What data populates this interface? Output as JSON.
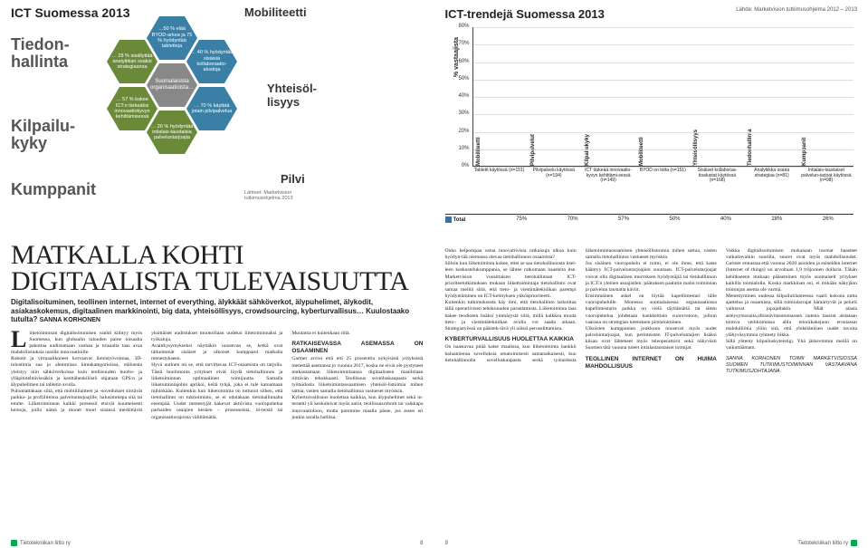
{
  "left": {
    "top_title": "ICT Suomessa 2013",
    "side_labels": {
      "tiedonhallinta": "Tiedon-\nhallinta",
      "kilpailukyky": "Kilpailu-\nkyky",
      "kumppanit": "Kumppanit"
    },
    "col_labels": {
      "mobiliteetti": "Mobiliteetti",
      "yhteisollisyys": "Yhteisöl-\nlisyys",
      "pilvi": "Pilvi"
    },
    "center": "Suomalaisista organisaatioista…",
    "hex": {
      "h1": "…50 % elää BYOD-arkea ja 75 % hyödyntää tabletteja",
      "h2": "… 28 % sisällyttää analytiikan osaksi strategiaansa",
      "h3": "… 40 % hyödyntää sisäisiä kollaboraatio-alustoja",
      "h4": "… 57 % kokee ICT:n tärkeäksi innovaatiokyvyn kehittämisessä",
      "h5": "… 26 % hyödyntää intialais-taustaisia palveluntarjoajia",
      "h6": "… 70 % käyttää jotain pilvipalvelua"
    },
    "source": "Lähteet: Marketvision tutkimusohjelma 2013"
  },
  "chart": {
    "title": "ICT-trendejä Suomessa 2013",
    "source": "Lähde: Marketvision tutkimusohjelma 2012 – 2013",
    "ylabel": "% vastaajista",
    "ylim": [
      0,
      80
    ],
    "ytick_step": 10,
    "categories_top": [
      "Mobiliteetti",
      "Pilvipalvelut",
      "Kilpailukyky",
      "Mobiliteetti",
      "Yhteisöllisyys",
      "Tiedonhallinta",
      "Kumppanit"
    ],
    "categories_bottom": [
      "Tabletit käytössä (n=151)",
      "Pilvipalvelu käytössä (n=194)",
      "ICT tärkeää innovaatio-kyvyn kehittämi-sessä (n=149)",
      "BYOD on totta (n=151)",
      "Sisäiset kollaboraa-tioalustat käytössä (n=168)",
      "Analytiikka osana strategiaa (n=81)",
      "Intialais-taustaiset palvelun-tarjoat käytössä (n=98)"
    ],
    "series_label": "Total",
    "values": [
      75,
      70,
      57,
      50,
      40,
      28,
      26
    ],
    "bar_color": "#3a6fa8",
    "grid_color": "#dddddd",
    "axis_color": "#444444",
    "background": "#ffffff"
  },
  "article": {
    "headline1": "MATKALLA KOHTI",
    "headline2": "DIGITAALISTA TULEVAISUUTTA",
    "lede": "Digitalisoituminen, teollinen internet, internet of everything, älykkäät sähköverkot, älypuhelimet, älykodit, asiakaskokemus, digitaalinen markkinointi, big data, yhteisöllisyys, crowdsourcing, kyberturvallisus… Kuulostaako tutulta?",
    "byline": "SANNA KORHONEN",
    "p1": "iiketoiminnan digitalisoitumisen vauhti kiihtyy myös Suomessa, kun globaalin talouden paine toisaalta pakottaa uudistamaan vanhaa ja toisaalta taas avaa mahdollisuuksia uusille innovaatioille.",
    "p2": "Robotit ja virtuaalikoneet korvaavat ihmistyövoimaa, 3D-tulostimia saa jo alemmissa hintakategorioissa, etäluenta yleistyy niin sähköverkoissa kuin teollisuuden huolto- ja ylläpitotehtävissäkin ja kenttähenkilöstö ohjataan GPS:n ja älypuhelimen tai tabletin avulla.",
    "p3": "Puhumattakaan siitä, että mobiililaitteet ja -sovellukset siirtävät paikka- ja profiiliteitoa palveluntarjoajille, halusimmepa sitä tai emme. Liiketoiminnan kaikki prosessit etsivät kuumeisesti keinoja, joilla nämä ja monet muut sinänsä merkittävät yksittäiset uudistukset muotoillaan uudeksi liitetoiminnaksi ja työkaluja.",
    "p4": "Avainkysymykseksi näyttäkin nousevan se, ketkä ovat tärkeimmät sisäiset ja ulkoiset kumppanit matkalla menestykseen.",
    "p5": "Hyvä uutinen on se, että tarvittavaa ICT-osaamista on tarjolla. Tästä huolimonta yritykset eivät löydä tietohallinnon ja liiketoiminnan optimaalinen toimijuutta. Samalla liiketoimintajohto aprikoi, keitä tyhjä, joka ei tule katoamaan mihinkään. Kuitenkin kun liiketoiminta on tottunut siihen, että tietohallinto on tukitoiminto, se ei odotakaan tietohallinnalta enempää. Uudet menestyjät hakevat aktiivista vuoropuhelua parhaiden osaajien kesken – prosesseista, tii-teistä tai organisaatiorajoista välittämättä.",
    "p6": "Muutama ei kuitenkaan riitä.",
    "h_ratk": "RATKAISEVASSA ASEMASSA ON OSAAMINEN",
    "p7": "Gartner arvioi että etti 25 prosenttia nykyisistä yrityksistä menettää asemansa jo vuonna 2017, koska ne eivät ole pystyneet mukautamaan liiketoimintaansa digitaaliseen maailmaan riittävän tehokkaasti. Teollisuus sovelluskaupasta serkä työtaidosta liiketoimintaosaamisen yhteisöl-listoimia mihen sattua, vasten samalla tietohallintoa vastueset myöskin.",
    "p8": "Kyberturvallisuus huolettaa kaikkia, kun älypuhelimet sekä in-ternetti yli keskuleivat myös autot, teollisuusrobotit tai vaikkapa innovaatioloon, mutta puremme maalla pässe, jos assen eri joukin saralla hallitsa.",
    "p_r1": "Onko helpompaa ostaa innovatiivisia ratkaisuja ulkoa kuin hyödyn-tää olemassa olevaa tietohallinnon osaamista?",
    "p_r2": "Silloin kun liiketoiminta kokee, ettei se saa tietohallinnosta itsel-leen keskustelukumppania, se lähtee ratkomaan haasteita itse. Marketvision vuosittaisen tietohallinnan ICT-prioriteetutkimuksen mukaan liikettoimintaja tietohallinto ovat samaa meiltä siitä, että tieto- ja viestintätekniikan parempi hyödyntäminen on ICT-kehityksen ykkösprioriteetti.",
    "p_r3": "Kuitenkin tutkimuksesta käy ilmi, että tietohallinto tarkoittaa tällä operatiivisen tehokuuuden parantamista. Liiketoiminta taas hakee teodiseen lisäksi ymmärystä siitä, millä kaikkea muuta tieto- ja viestintätekniikan avulla voi saada aikaan. Strategiatyössä on päästek-tävä yli näistä peruselittamista.",
    "h_kyber": "KYBERTURVALLISUUS HUOLETTAA KAIKKIA",
    "p_r4": "On haastavaa pitää katse maalissa, kun liiketoiminta hankkii haluamiensa sovelluksia omatoimisesti samanaikaisesti, kun tietohallinnolta sovelluskaupasta serkä työtaidosta liiketoimintaosaamisen yhteisöllistoimia mihen sattua, vasten samalla tietohallintoa vastueset myöskin.",
    "p_r5": "Jos sisäinen vuoropuhelu ei toimi, ei ole ihme, että katse kääntyy ICT-palveluntarjoajien suuntaan. ICT-palvelutarjoajat voivat olla digitaalisen murroksen hyödyntäjiä tai tienhallinnon ja ICT:n yleinen asoajistlen. päätuksen paalutin malin toiminnan ja palvelun taustalla käviit.",
    "p_r6": "Ensimmäinen askel on löytää kapellimestari tälle vuoropuhelulle. Monessa suomalaisessa organisaatiossa kapellimestarin paikka on vielä täyttämättä tai sitten vuoropuhelua johdetaan hankkeittain vuorovetoon, jolloin vaarana on strategian totetuksen pirstaloiminen.",
    "p_r7": "Ulkoisten kumppanien joukkoon nousevat myös uudet palveluntarjoajat, kun perinteisten IT-palveluntajien lisäksi kiisan ovat lähteneet myös teleoperattorit sekä näkyvästi Suomen tätä vuonna tuleet intialastaustaiset toimijat.",
    "h_teoll": "TEOLLINEN INTERNET ON HUIMA MAHDOLLISUUS",
    "p_r8": "Vaikka digitalisoitumisen mukanaan tuomat haasteet vaikuttavaikin suurilta, suuret ovat myös mahdollisuudet. Gartner ennustaa että vuonna 2020 asioiden ja esineiden internet (internet of things) on arvoltaan 1,9 triljoonen dollaria. Tähän kehitkseenn mukaan pääseminen myös suomaiselt yritykset kaikilla toimialolla. Koska markkinan osi, ei mikään näkyjäon toiminjan asema ole varmä.",
    "p_r9": "Menestyminen uudessa kilpailutilanteessa vaatii kokona uutta ajattelua ja osaamista, sillä toimialarrajat hämärtyvät ja pelurit vaihtavat jopajaltakin. Miät alasta asteysymosaita,olbistävitasutumassen uutena tausrat aistataan toimva verkkoimissa alila teionikakejuon eroniassai mahdolliötia ylöin sitä, että yhdsitämisen uudet tavoita ylähyväsymmia ryhmety liikka.",
    "p_r10": "Sillä yhtenty kilpailuskyteistigi. Yhä järkevmmin meillä on vaikuttäämam.",
    "tagline": "SANNA KORHONEN TOIMII MARKETVISIOSSA SUOMEN TUTKIMUSTOIMINNAN VASTAAVANA TUTKIMUSJOHTAJANA."
  },
  "footer": {
    "org": "Tietotekniikan liitto ry",
    "page_left": "8",
    "page_right": "9"
  },
  "colors": {
    "dropcap": "#222222",
    "headline2": "#c28a00",
    "hex_green": "#6a8a3a",
    "hex_blue": "#3a7fa6",
    "hex_center": "#888888"
  }
}
